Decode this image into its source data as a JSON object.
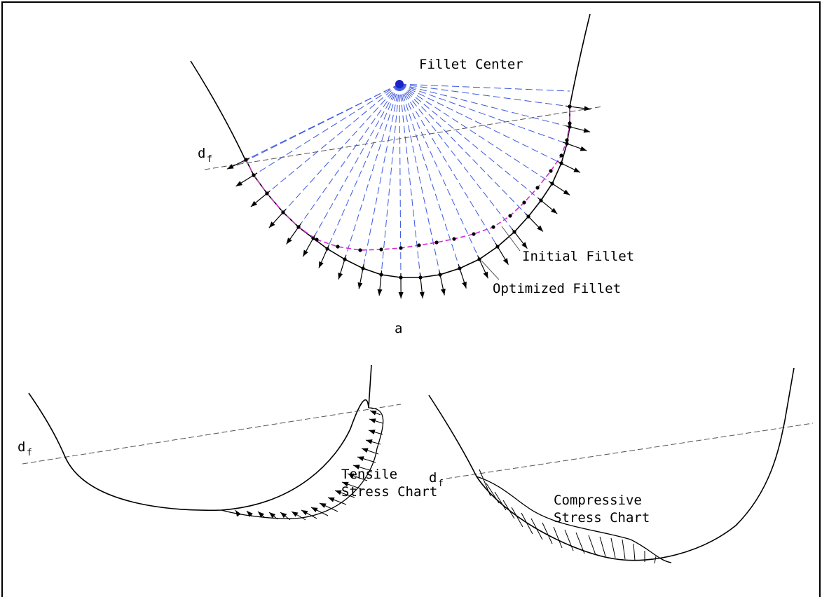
{
  "panel_a": {
    "fillet_center_label": "Fillet Center",
    "df_symbol": "d",
    "df_subscript": "f",
    "initial_fillet_label": "Initial Fillet",
    "optimized_fillet_label": "Optimized Fillet",
    "panel_label": "a"
  },
  "panel_b": {
    "df_symbol": "d",
    "df_subscript": "f",
    "chart_label_line1": "Tensile",
    "chart_label_line2": "Stress Chart"
  },
  "panel_c": {
    "df_symbol": "d",
    "df_subscript": "f",
    "chart_label_line1": "Compressive",
    "chart_label_line2": "Stress Chart"
  },
  "colors": {
    "ray": "#3b57e0",
    "initial_fillet": "#d62ad6",
    "outline": "#000000"
  }
}
